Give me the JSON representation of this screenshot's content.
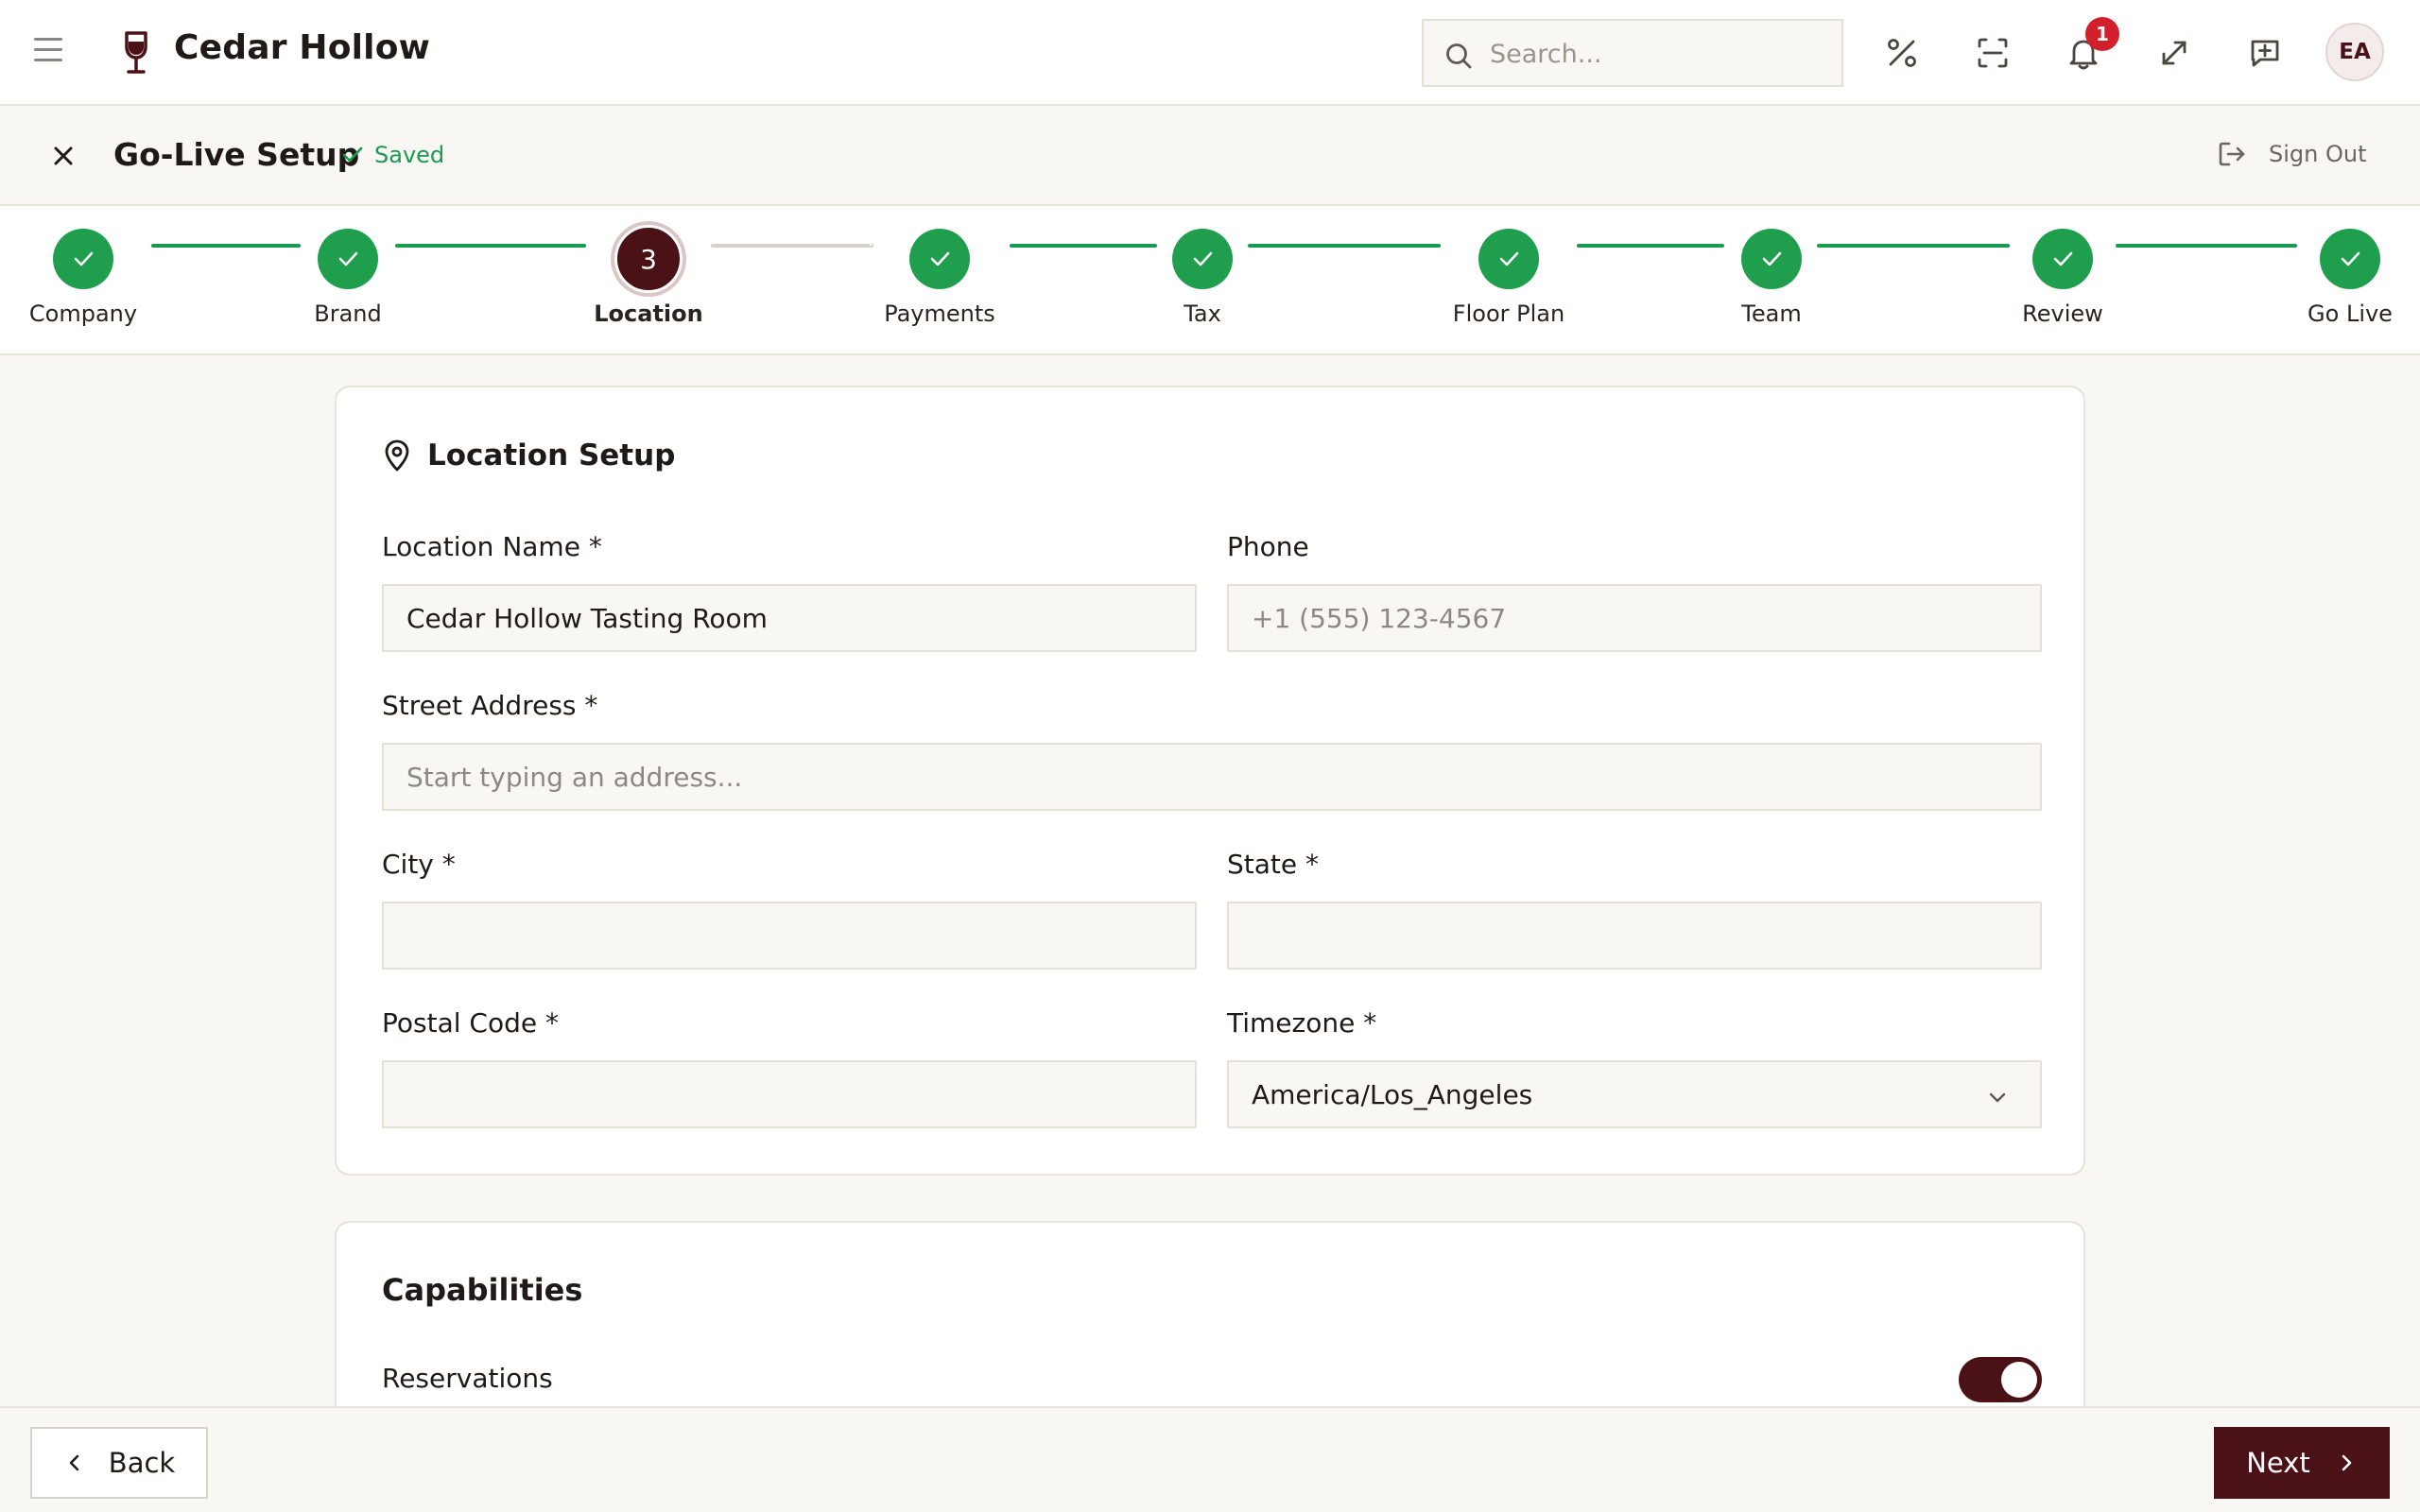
{
  "app": {
    "name": "Cedar Hollow",
    "brand_color": "#4a1216",
    "success_color": "#1f9e4e"
  },
  "topbar": {
    "search_placeholder": "Search...",
    "notification_count": "1",
    "avatar_initials": "EA",
    "icons": [
      "menu-icon",
      "wine-glass-logo-icon",
      "search-icon",
      "percent-icon",
      "scan-icon",
      "bell-icon",
      "expand-icon",
      "feedback-icon"
    ]
  },
  "subheader": {
    "title": "Go-Live Setup",
    "saved_label": "Saved",
    "sign_out_label": "Sign Out"
  },
  "stepper": {
    "current_step": 3,
    "steps": [
      {
        "label": "Company",
        "status": "complete"
      },
      {
        "label": "Brand",
        "status": "complete"
      },
      {
        "label": "Location",
        "status": "current",
        "number": "3"
      },
      {
        "label": "Payments",
        "status": "complete"
      },
      {
        "label": "Tax",
        "status": "complete"
      },
      {
        "label": "Floor Plan",
        "status": "complete"
      },
      {
        "label": "Team",
        "status": "complete"
      },
      {
        "label": "Review",
        "status": "complete"
      },
      {
        "label": "Go Live",
        "status": "complete"
      }
    ]
  },
  "location_setup": {
    "title": "Location Setup",
    "fields": {
      "location_name": {
        "label": "Location Name *",
        "value": "Cedar Hollow Tasting Room"
      },
      "phone": {
        "label": "Phone",
        "placeholder": "+1 (555) 123-4567",
        "value": ""
      },
      "street_address": {
        "label": "Street Address *",
        "placeholder": "Start typing an address...",
        "value": ""
      },
      "city": {
        "label": "City *",
        "value": ""
      },
      "state": {
        "label": "State *",
        "value": ""
      },
      "postal_code": {
        "label": "Postal Code *",
        "value": ""
      },
      "timezone": {
        "label": "Timezone *",
        "value": "America/Los_Angeles"
      }
    }
  },
  "capabilities": {
    "title": "Capabilities",
    "items": [
      {
        "label": "Reservations",
        "enabled": true
      }
    ]
  },
  "footer": {
    "back_label": "Back",
    "next_label": "Next"
  }
}
